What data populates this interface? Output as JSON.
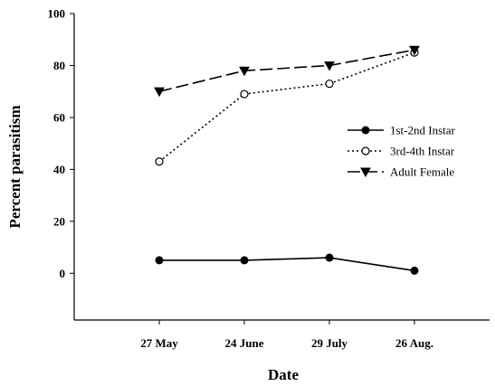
{
  "chart_data": {
    "type": "line",
    "title": "",
    "xlabel": "Date",
    "ylabel": "Percent parasitism",
    "categories": [
      "27 May",
      "24 June",
      "29 July",
      "26 Aug."
    ],
    "ylim": [
      -18,
      100
    ],
    "yticks": [
      0,
      20,
      40,
      60,
      80,
      100
    ],
    "grid": false,
    "legend_position": "right",
    "series": [
      {
        "name": "1st-2nd Instar",
        "values": [
          5,
          5,
          6,
          1
        ],
        "marker": "filled-circle",
        "line_style": "solid",
        "color": "#000000"
      },
      {
        "name": "3rd-4th Instar",
        "values": [
          43,
          69,
          73,
          85
        ],
        "marker": "open-circle",
        "line_style": "dotted",
        "color": "#000000"
      },
      {
        "name": "Adult Female",
        "values": [
          70,
          78,
          80,
          86
        ],
        "marker": "filled-triangle-down",
        "line_style": "dashed",
        "color": "#000000"
      }
    ]
  }
}
